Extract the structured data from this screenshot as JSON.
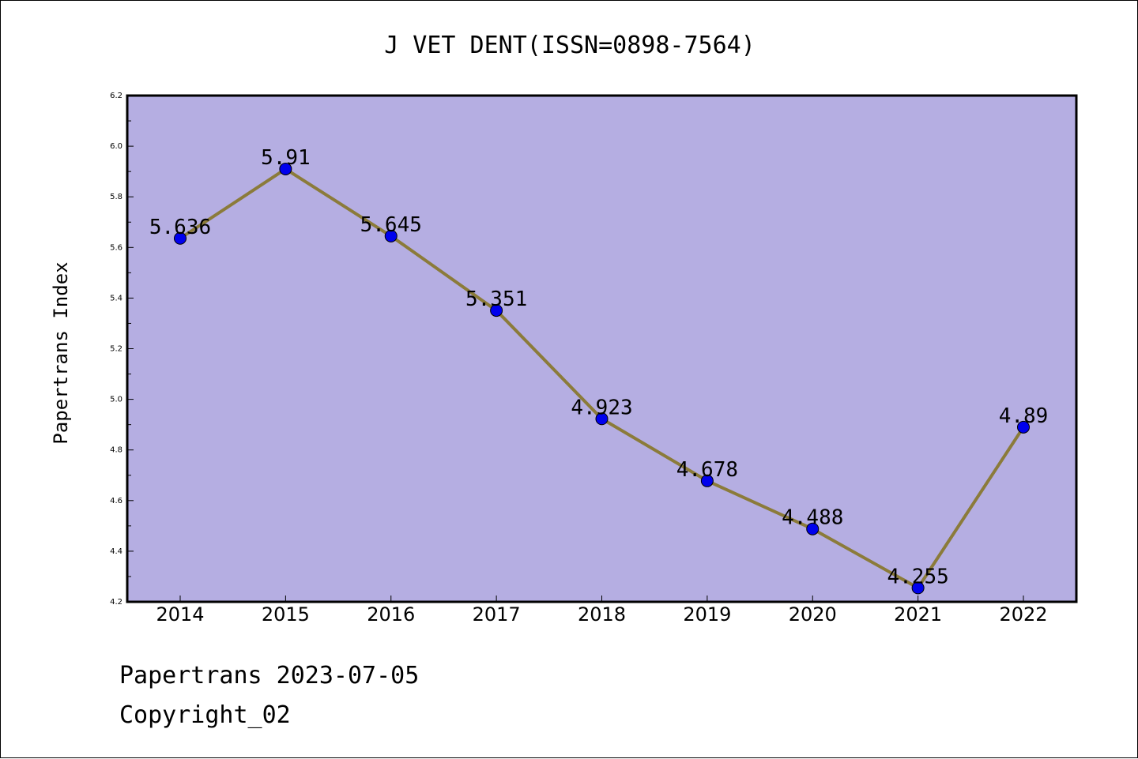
{
  "footer": {
    "line1": "Papertrans 2023-07-05",
    "line2": "Copyright_02"
  },
  "chart_data": {
    "type": "line",
    "title": "J VET DENT(ISSN=0898-7564)",
    "xlabel": "",
    "ylabel": "Papertrans Index",
    "categories": [
      "2014",
      "2015",
      "2016",
      "2017",
      "2018",
      "2019",
      "2020",
      "2021",
      "2022"
    ],
    "series": [
      {
        "values": [
          5.636,
          5.91,
          5.645,
          5.351,
          4.923,
          4.678,
          4.488,
          4.255,
          4.89
        ],
        "labels": [
          "5.636",
          "5.91",
          "5.645",
          "5.351",
          "4.923",
          "4.678",
          "4.488",
          "4.255",
          "4.89"
        ],
        "line_color": "#8b7b3a",
        "marker_color": "#0000ee"
      }
    ],
    "ylim": [
      4.2,
      6.2
    ],
    "yticks": [
      "4.2",
      "4.4",
      "4.6",
      "4.8",
      "5.0",
      "5.2",
      "5.4",
      "5.6",
      "5.8",
      "6.0",
      "6.2"
    ],
    "plot_background": "#b5aee2",
    "grid": false
  }
}
